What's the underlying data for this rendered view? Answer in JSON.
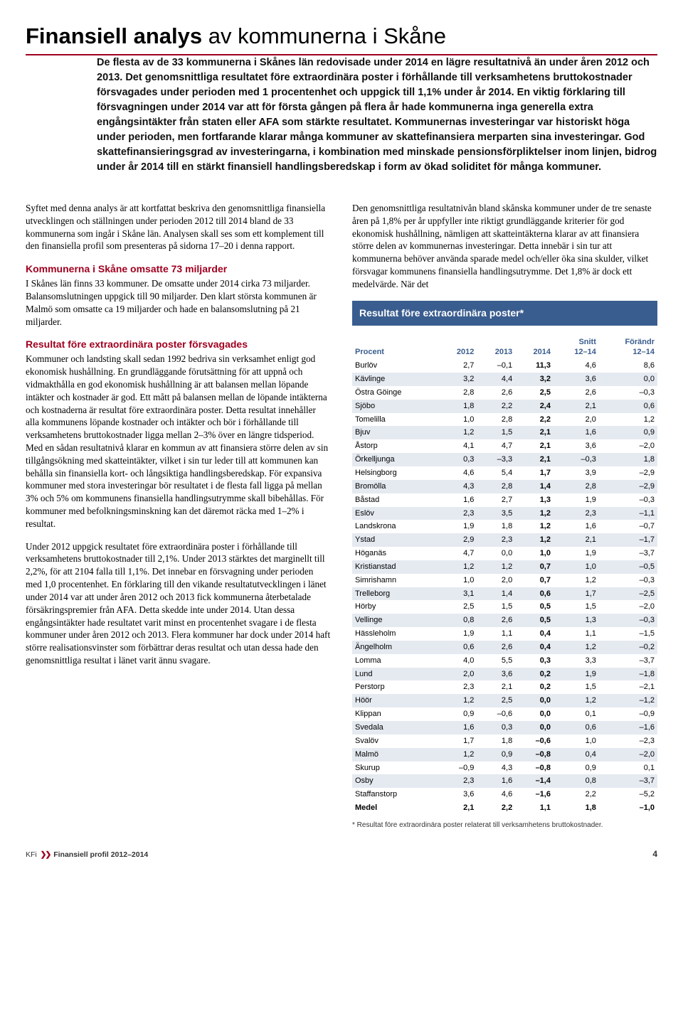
{
  "title_bold": "Finansiell analys",
  "title_rest": " av kommunerna i Skåne",
  "intro": "De flesta av de 33 kommunerna i Skånes län redovisade under 2014 en lägre resultatnivå än under åren 2012 och 2013. Det genomsnittliga resultatet före extraordinära poster i förhållande till verksamhetens bruttokostnader försvagades under perioden med 1 procentenhet och uppgick till 1,1% under år 2014. En viktig förklaring till försvagningen under 2014 var att för första gången på flera år hade kommunerna inga generella extra engångsintäkter från staten eller AFA som stärkte resultatet. Kommunernas investeringar var historiskt höga under perioden, men fortfarande klarar många kommuner av skattefinansiera merparten sina investeringar. God skattefinansieringsgrad av investeringarna, i kombination med minskade pensionsförpliktelser inom linjen, bidrog under år 2014 till en stärkt finansiell handlingsberedskap i form av ökad soliditet för många kommuner.",
  "left": {
    "p1": "Syftet med denna analys är att kortfattat beskriva den genomsnittliga finansiella utvecklingen och ställningen under perioden 2012 till 2014 bland de 33 kommunerna som ingår i Skåne län. Analysen skall ses som ett komplement till den finansiella profil som presenteras på sidorna 17–20 i denna rapport.",
    "h1": "Kommunerna i Skåne omsatte 73 miljarder",
    "p2": "I Skånes län finns 33 kommuner. De omsatte under 2014 cirka 73 miljarder. Balansomslutningen uppgick till 90 miljarder. Den klart största kommunen är Malmö som omsatte ca 19 miljarder och hade en balansomslutning på 21 miljarder.",
    "h2": "Resultat före extraordinära poster försvagades",
    "p3": "Kommuner och landsting skall sedan 1992 bedriva sin verksamhet enligt god ekonomisk hushållning. En grundläggande förutsättning för att uppnå och vidmakthålla en god ekonomisk hushållning är att balansen mellan löpande intäkter och kostnader är god. Ett mått på balansen mellan de löpande intäkterna och kostnaderna är resultat före extraordinära poster. Detta resultat innehåller alla kommunens löpande kostnader och intäkter och bör i förhållande till verksamhetens bruttokostnader ligga mellan 2–3% över en längre tidsperiod. Med en sådan resultatnivå klarar en kommun av att finansiera större delen av sin tillgångsökning med skatteintäkter, vilket i sin tur leder till att kommunen kan behålla sin finansiella kort- och långsiktiga handlingsberedskap. För expansiva kommuner med stora investeringar bör resultatet i de flesta fall ligga på mellan 3% och 5% om kommunens finansiella handlingsutrymme skall bibehållas. För kommuner med befolkningsminskning kan det däremot räcka med 1–2% i resultat.",
    "p4": "Under 2012 uppgick resultatet före extraordinära poster i förhållande till verksamhetens bruttokostnader till 2,1%. Under 2013 stärktes det marginellt till 2,2%, för att 2104 falla till 1,1%. Det innebar en försvagning under perioden med 1,0 procentenhet. En förklaring till den vikande resultatutvecklingen i länet under 2014 var att under åren 2012 och 2013 fick kommunerna återbetalade försäkringspremier från AFA. Detta skedde inte under 2014. Utan dessa engångsintäkter hade resultatet varit minst en procentenhet svagare i de flesta kommuner under åren 2012 och 2013. Flera kommuner har dock under 2014 haft större realisationsvinster som förbättrar deras resultat och utan dessa hade den genomsnittliga resultat i länet varit ännu svagare."
  },
  "right": {
    "p1": "Den genomsnittliga resultatnivån bland skånska kommuner under de tre senaste åren på 1,8% per år uppfyller inte riktigt grundläggande kriterier för god ekonomisk hushållning, nämligen att skatteintäkterna klarar av att finansiera större delen av kommunernas investeringar. Detta innebär i sin tur att kommunerna behöver använda sparade medel och/eller öka sina skulder, vilket försvagar kommunens finansiella handlingsutrymme. Det 1,8% är dock ett medelvärde. När det",
    "table_title": "Resultat före extraordinära poster*",
    "footnote": "* Resultat före extraordinära poster relaterat till verksamhetens bruttokostnader."
  },
  "table": {
    "headers": [
      "Procent",
      "2012",
      "2013",
      "2014",
      "Snitt 12–14",
      "Förändr 12–14"
    ],
    "rows": [
      {
        "n": "Burlöv",
        "v": [
          "2,7",
          "–0,1",
          "11,3",
          "4,6",
          "8,6"
        ],
        "s": 0
      },
      {
        "n": "Kävlinge",
        "v": [
          "3,2",
          "4,4",
          "3,2",
          "3,6",
          "0,0"
        ],
        "s": 1
      },
      {
        "n": "Östra Göinge",
        "v": [
          "2,8",
          "2,6",
          "2,5",
          "2,6",
          "–0,3"
        ],
        "s": 0
      },
      {
        "n": "Sjöbo",
        "v": [
          "1,8",
          "2,2",
          "2,4",
          "2,1",
          "0,6"
        ],
        "s": 1
      },
      {
        "n": "Tomelilla",
        "v": [
          "1,0",
          "2,8",
          "2,2",
          "2,0",
          "1,2"
        ],
        "s": 0
      },
      {
        "n": "Bjuv",
        "v": [
          "1,2",
          "1,5",
          "2,1",
          "1,6",
          "0,9"
        ],
        "s": 1
      },
      {
        "n": "Åstorp",
        "v": [
          "4,1",
          "4,7",
          "2,1",
          "3,6",
          "–2,0"
        ],
        "s": 0
      },
      {
        "n": "Örkelljunga",
        "v": [
          "0,3",
          "–3,3",
          "2,1",
          "–0,3",
          "1,8"
        ],
        "s": 1
      },
      {
        "n": "Helsingborg",
        "v": [
          "4,6",
          "5,4",
          "1,7",
          "3,9",
          "–2,9"
        ],
        "s": 0
      },
      {
        "n": "Bromölla",
        "v": [
          "4,3",
          "2,8",
          "1,4",
          "2,8",
          "–2,9"
        ],
        "s": 1
      },
      {
        "n": "Båstad",
        "v": [
          "1,6",
          "2,7",
          "1,3",
          "1,9",
          "–0,3"
        ],
        "s": 0
      },
      {
        "n": "Eslöv",
        "v": [
          "2,3",
          "3,5",
          "1,2",
          "2,3",
          "–1,1"
        ],
        "s": 1
      },
      {
        "n": "Landskrona",
        "v": [
          "1,9",
          "1,8",
          "1,2",
          "1,6",
          "–0,7"
        ],
        "s": 0
      },
      {
        "n": "Ystad",
        "v": [
          "2,9",
          "2,3",
          "1,2",
          "2,1",
          "–1,7"
        ],
        "s": 1
      },
      {
        "n": "Höganäs",
        "v": [
          "4,7",
          "0,0",
          "1,0",
          "1,9",
          "–3,7"
        ],
        "s": 0
      },
      {
        "n": "Kristianstad",
        "v": [
          "1,2",
          "1,2",
          "0,7",
          "1,0",
          "–0,5"
        ],
        "s": 1
      },
      {
        "n": "Simrishamn",
        "v": [
          "1,0",
          "2,0",
          "0,7",
          "1,2",
          "–0,3"
        ],
        "s": 0
      },
      {
        "n": "Trelleborg",
        "v": [
          "3,1",
          "1,4",
          "0,6",
          "1,7",
          "–2,5"
        ],
        "s": 1
      },
      {
        "n": "Hörby",
        "v": [
          "2,5",
          "1,5",
          "0,5",
          "1,5",
          "–2,0"
        ],
        "s": 0
      },
      {
        "n": "Vellinge",
        "v": [
          "0,8",
          "2,6",
          "0,5",
          "1,3",
          "–0,3"
        ],
        "s": 1
      },
      {
        "n": "Hässleholm",
        "v": [
          "1,9",
          "1,1",
          "0,4",
          "1,1",
          "–1,5"
        ],
        "s": 0
      },
      {
        "n": "Ängelholm",
        "v": [
          "0,6",
          "2,6",
          "0,4",
          "1,2",
          "–0,2"
        ],
        "s": 1
      },
      {
        "n": "Lomma",
        "v": [
          "4,0",
          "5,5",
          "0,3",
          "3,3",
          "–3,7"
        ],
        "s": 0
      },
      {
        "n": "Lund",
        "v": [
          "2,0",
          "3,6",
          "0,2",
          "1,9",
          "–1,8"
        ],
        "s": 1
      },
      {
        "n": "Perstorp",
        "v": [
          "2,3",
          "2,1",
          "0,2",
          "1,5",
          "–2,1"
        ],
        "s": 0
      },
      {
        "n": "Höör",
        "v": [
          "1,2",
          "2,5",
          "0,0",
          "1,2",
          "–1,2"
        ],
        "s": 1
      },
      {
        "n": "Klippan",
        "v": [
          "0,9",
          "–0,6",
          "0,0",
          "0,1",
          "–0,9"
        ],
        "s": 0
      },
      {
        "n": "Svedala",
        "v": [
          "1,6",
          "0,3",
          "0,0",
          "0,6",
          "–1,6"
        ],
        "s": 1
      },
      {
        "n": "Svalöv",
        "v": [
          "1,7",
          "1,8",
          "–0,6",
          "1,0",
          "–2,3"
        ],
        "s": 0
      },
      {
        "n": "Malmö",
        "v": [
          "1,2",
          "0,9",
          "–0,8",
          "0,4",
          "–2,0"
        ],
        "s": 1
      },
      {
        "n": "Skurup",
        "v": [
          "–0,9",
          "4,3",
          "–0,8",
          "0,9",
          "0,1"
        ],
        "s": 0
      },
      {
        "n": "Osby",
        "v": [
          "2,3",
          "1,6",
          "–1,4",
          "0,8",
          "–3,7"
        ],
        "s": 1
      },
      {
        "n": "Staffanstorp",
        "v": [
          "3,6",
          "4,6",
          "–1,6",
          "2,2",
          "–5,2"
        ],
        "s": 0
      }
    ],
    "medel": {
      "n": "Medel",
      "v": [
        "2,1",
        "2,2",
        "1,1",
        "1,8",
        "–1,0"
      ]
    }
  },
  "footer": {
    "kfi": "KFi",
    "ptitle": "Finansiell profil 2012–2014",
    "pnum": "4"
  },
  "colors": {
    "accent_red": "#a00020",
    "accent_blue": "#3a5d8f",
    "row_shade": "#e5eaf1"
  }
}
